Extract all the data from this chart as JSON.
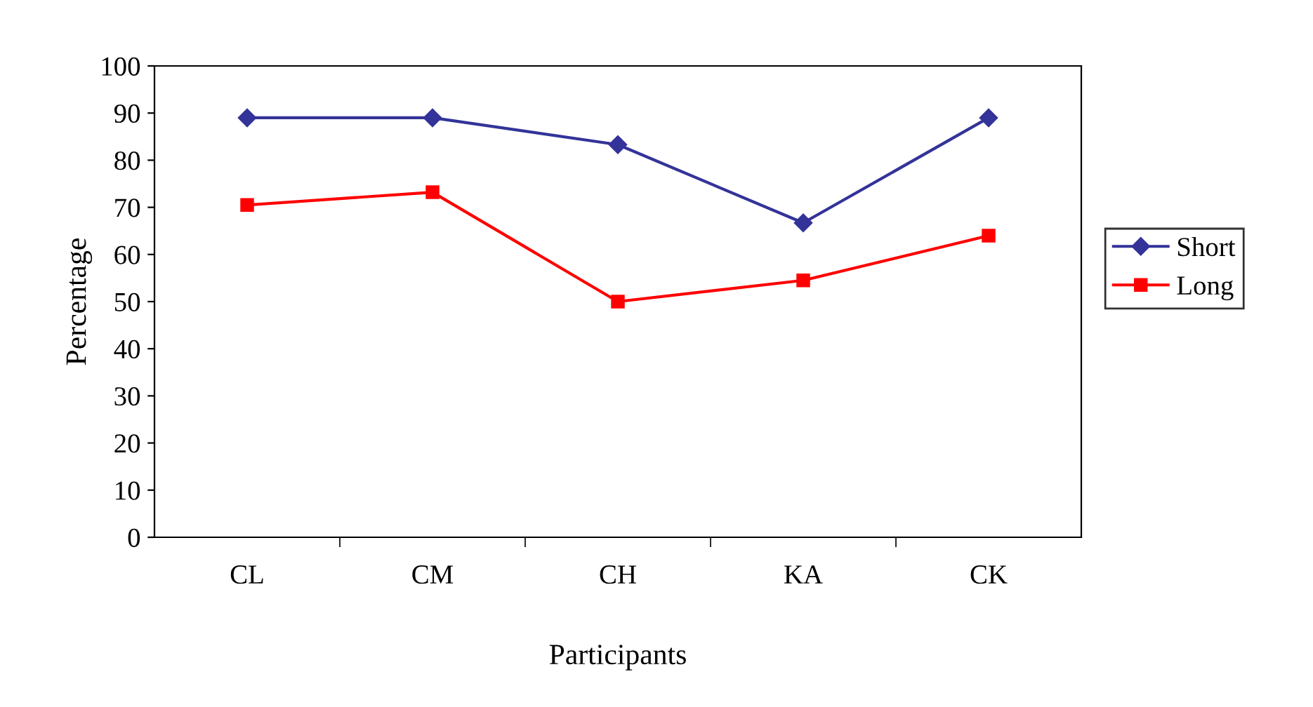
{
  "chart_data": {
    "type": "line",
    "xlabel": "Participants",
    "ylabel": "Percentage",
    "categories": [
      "CL",
      "CM",
      "CH",
      "KA",
      "CK"
    ],
    "series": [
      {
        "name": "Short",
        "color": "#333399",
        "values": [
          89,
          89,
          83.3,
          66.7,
          89
        ],
        "marker": "diamond"
      },
      {
        "name": "Long",
        "color": "#ff0000",
        "values": [
          70.5,
          73.2,
          50,
          54.5,
          64
        ],
        "marker": "square"
      }
    ],
    "ylim": [
      0,
      100
    ],
    "yticks": [
      0,
      10,
      20,
      30,
      40,
      50,
      60,
      70,
      80,
      90,
      100
    ],
    "grid": false,
    "legend": "right",
    "line_style": "solid"
  }
}
